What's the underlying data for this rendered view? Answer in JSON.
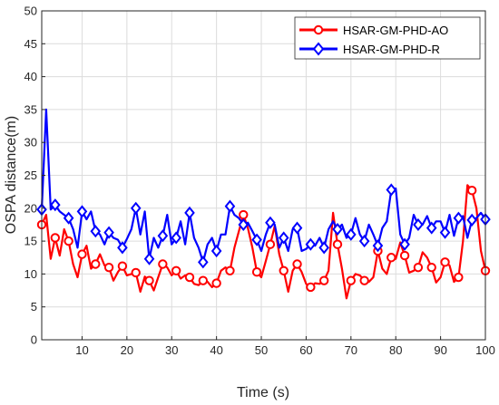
{
  "chart_data": {
    "type": "line",
    "xlabel": "Time (s)",
    "ylabel": "OSPA distance(m)",
    "xlim": [
      1,
      100
    ],
    "ylim": [
      0,
      50
    ],
    "xticks": [
      10,
      20,
      30,
      40,
      50,
      60,
      70,
      80,
      90,
      100
    ],
    "yticks": [
      0,
      5,
      10,
      15,
      20,
      25,
      30,
      35,
      40,
      45,
      50
    ],
    "grid": true,
    "legend_position": "top-right",
    "x": [
      1,
      2,
      3,
      4,
      5,
      6,
      7,
      8,
      9,
      10,
      11,
      12,
      13,
      14,
      15,
      16,
      17,
      18,
      19,
      20,
      21,
      22,
      23,
      24,
      25,
      26,
      27,
      28,
      29,
      30,
      31,
      32,
      33,
      34,
      35,
      36,
      37,
      38,
      39,
      40,
      41,
      42,
      43,
      44,
      45,
      46,
      47,
      48,
      49,
      50,
      51,
      52,
      53,
      54,
      55,
      56,
      57,
      58,
      59,
      60,
      61,
      62,
      63,
      64,
      65,
      66,
      67,
      68,
      69,
      70,
      71,
      72,
      73,
      74,
      75,
      76,
      77,
      78,
      79,
      80,
      81,
      82,
      83,
      84,
      85,
      86,
      87,
      88,
      89,
      90,
      91,
      92,
      93,
      94,
      95,
      96,
      97,
      98,
      99,
      100
    ],
    "series": [
      {
        "name": "HSAR-GM-PHD-AO",
        "color": "#ff0000",
        "marker": "circle",
        "marker_every": 3,
        "values": [
          17.5,
          19.0,
          12.3,
          15.5,
          12.8,
          16.8,
          15.0,
          11.5,
          9.5,
          13.0,
          14.3,
          10.8,
          11.5,
          13.0,
          11.3,
          11.0,
          9.0,
          10.3,
          11.2,
          9.8,
          10.0,
          10.2,
          7.3,
          9.6,
          9.0,
          7.5,
          9.5,
          11.5,
          11.0,
          9.8,
          10.5,
          9.3,
          9.8,
          9.5,
          8.5,
          8.3,
          9.0,
          8.8,
          8.0,
          8.6,
          10.5,
          11.0,
          10.5,
          14.0,
          16.5,
          19.0,
          17.0,
          14.0,
          10.3,
          9.5,
          12.0,
          14.5,
          17.3,
          13.0,
          10.5,
          7.3,
          10.5,
          11.5,
          10.3,
          8.5,
          8.0,
          8.6,
          8.5,
          9.0,
          10.5,
          19.3,
          14.5,
          10.8,
          6.3,
          9.0,
          10.0,
          9.8,
          9.0,
          8.8,
          9.5,
          13.5,
          10.8,
          10.0,
          12.5,
          12.3,
          14.8,
          12.8,
          10.2,
          10.5,
          11.0,
          13.3,
          12.5,
          11.0,
          8.7,
          9.5,
          11.8,
          11.3,
          8.8,
          9.5,
          15.0,
          23.5,
          22.7,
          20.0,
          13.5,
          10.5
        ]
      },
      {
        "name": "HSAR-GM-PHD-R",
        "color": "#0000ff",
        "marker": "diamond",
        "marker_every": 3,
        "values": [
          19.8,
          35.0,
          19.8,
          20.5,
          19.5,
          19.0,
          18.5,
          16.8,
          14.0,
          19.5,
          18.3,
          19.5,
          16.5,
          16.0,
          14.5,
          16.3,
          15.5,
          15.2,
          14.0,
          15.3,
          16.8,
          20.0,
          16.0,
          19.5,
          12.3,
          15.5,
          14.0,
          15.8,
          19.0,
          14.5,
          15.5,
          18.0,
          14.5,
          19.3,
          15.5,
          14.0,
          11.8,
          14.5,
          15.5,
          13.5,
          16.0,
          16.0,
          20.3,
          19.0,
          18.5,
          17.5,
          17.8,
          16.5,
          15.2,
          13.5,
          16.0,
          17.8,
          17.5,
          14.0,
          15.5,
          13.5,
          16.8,
          17.0,
          13.5,
          13.8,
          14.5,
          14.3,
          15.5,
          14.0,
          16.8,
          18.0,
          16.8,
          17.5,
          15.5,
          16.0,
          18.5,
          16.0,
          15.0,
          17.5,
          16.0,
          14.3,
          17.0,
          18.0,
          22.8,
          23.0,
          16.0,
          14.5,
          15.5,
          19.0,
          17.5,
          17.5,
          18.8,
          17.0,
          18.0,
          18.0,
          16.3,
          19.0,
          15.8,
          18.5,
          18.8,
          15.5,
          18.2,
          18.5,
          19.3,
          18.3
        ]
      }
    ]
  }
}
